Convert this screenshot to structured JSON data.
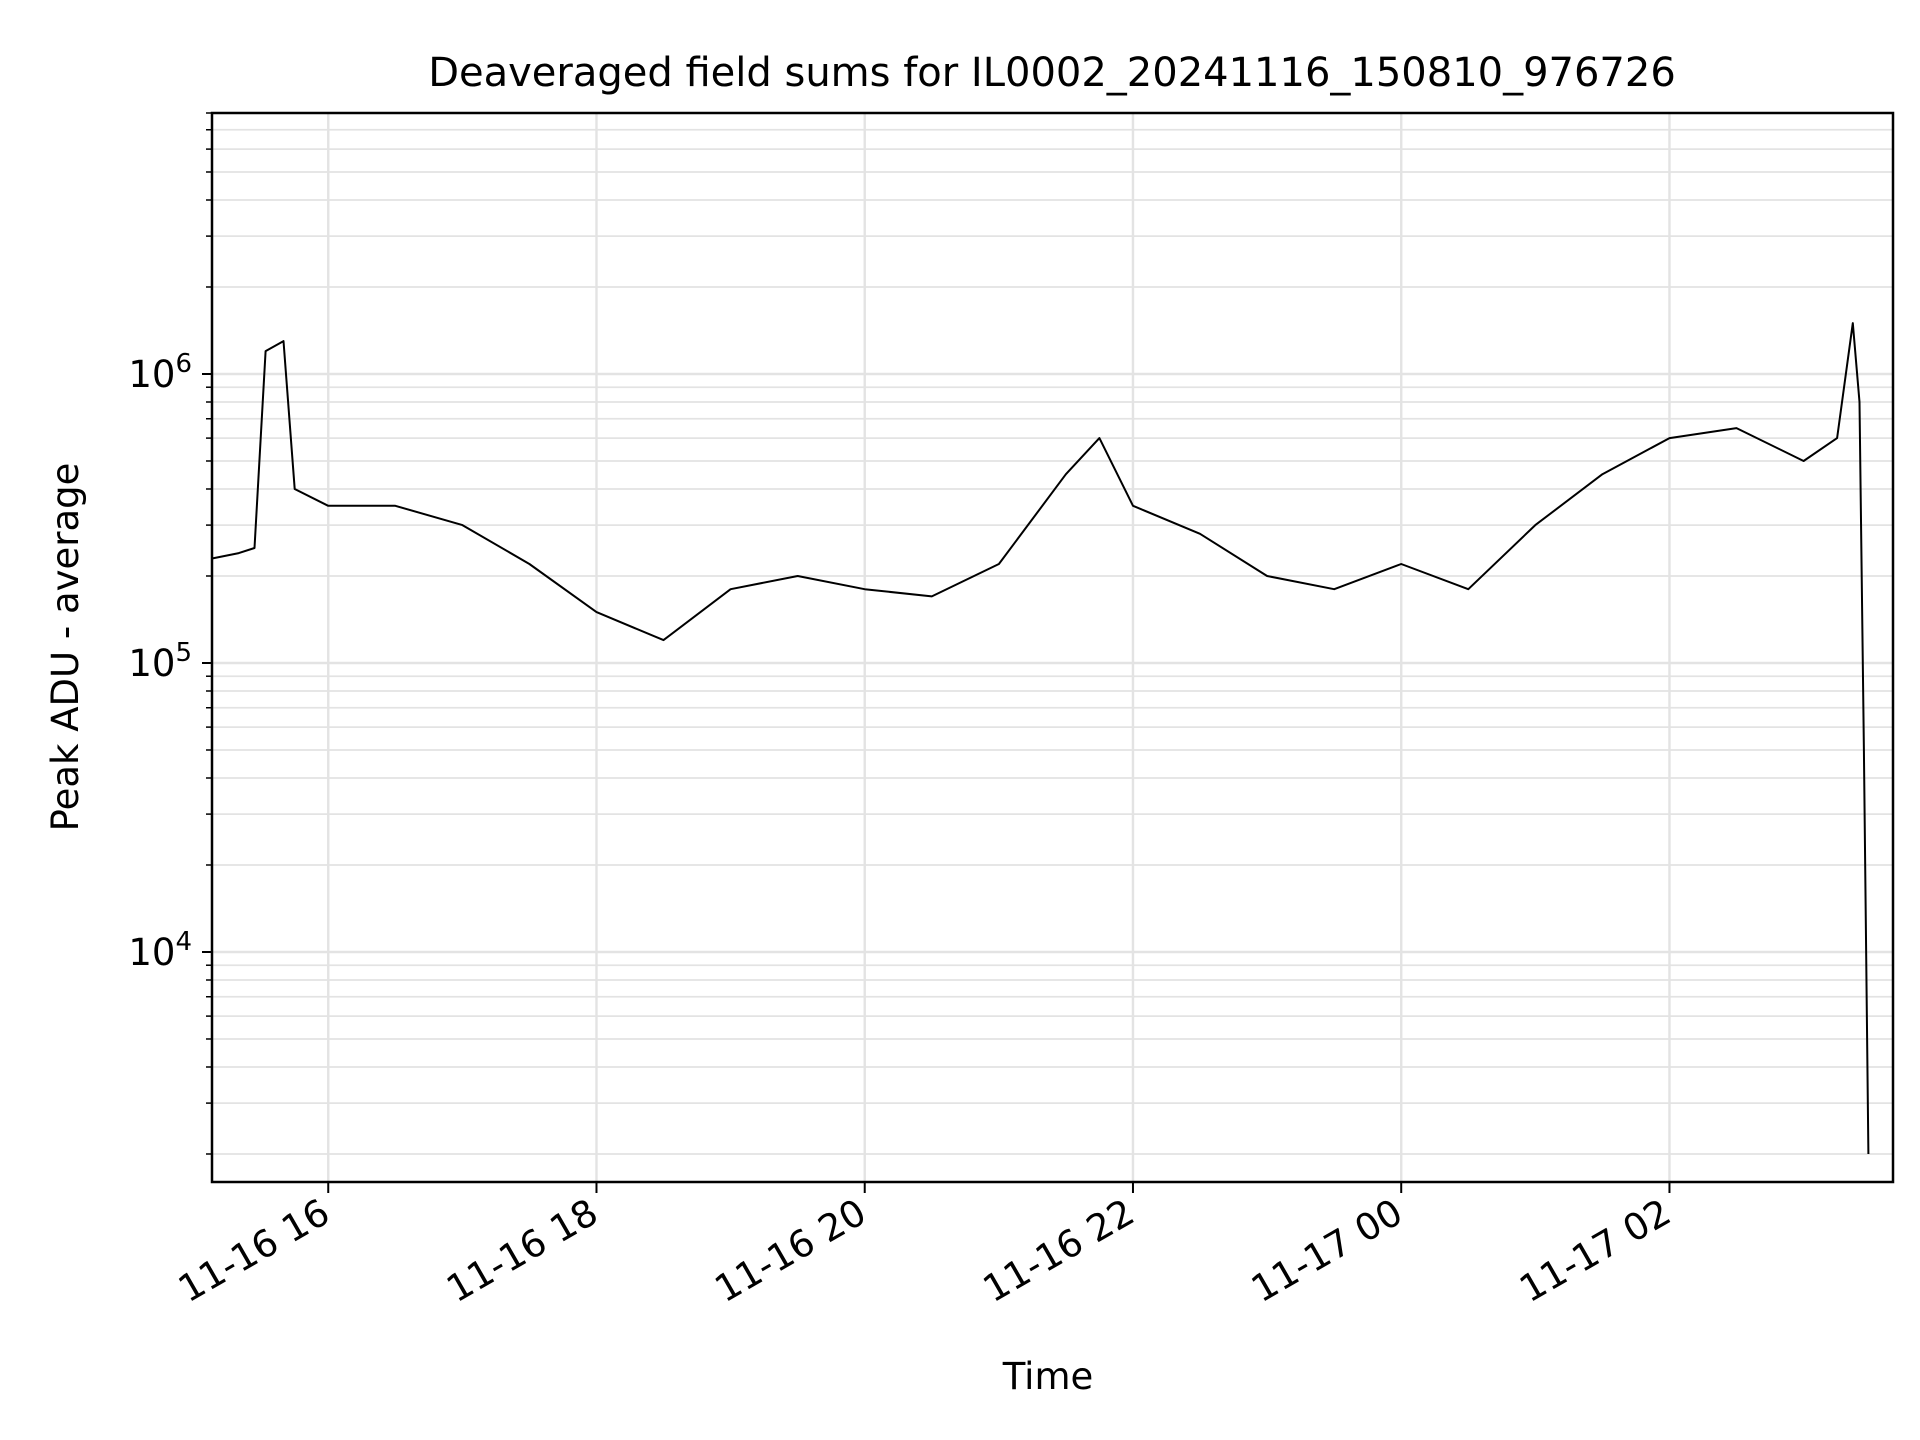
{
  "chart_data": {
    "type": "line",
    "title": "Deaveraged field sums for IL0002_20241116_150810_976726",
    "xlabel": "Time",
    "ylabel": "Peak ADU - average",
    "yscale": "log",
    "grid": true,
    "x_ticks": [
      {
        "label": "11-16 16",
        "t": "2024-11-16T16:00"
      },
      {
        "label": "11-16 18",
        "t": "2024-11-16T18:00"
      },
      {
        "label": "11-16 20",
        "t": "2024-11-16T20:00"
      },
      {
        "label": "11-16 22",
        "t": "2024-11-16T22:00"
      },
      {
        "label": "11-17 00",
        "t": "2024-11-17T00:00"
      },
      {
        "label": "11-17 02",
        "t": "2024-11-17T02:00"
      }
    ],
    "y_ticks": [
      {
        "base": "10",
        "exp": "4",
        "value": 10000
      },
      {
        "base": "10",
        "exp": "5",
        "value": 100000
      },
      {
        "base": "10",
        "exp": "6",
        "value": 1000000
      }
    ],
    "xlim": [
      "2024-11-16T15:08",
      "2024-11-17T03:40"
    ],
    "ylim": [
      1600,
      8000000
    ],
    "series": [
      {
        "color": "#000000",
        "x": [
          "2024-11-16T15:08",
          "2024-11-16T15:20",
          "2024-11-16T15:27",
          "2024-11-16T15:32",
          "2024-11-16T15:40",
          "2024-11-16T15:45",
          "2024-11-16T16:00",
          "2024-11-16T16:30",
          "2024-11-16T17:00",
          "2024-11-16T17:30",
          "2024-11-16T18:00",
          "2024-11-16T18:30",
          "2024-11-16T19:00",
          "2024-11-16T19:30",
          "2024-11-16T20:00",
          "2024-11-16T20:30",
          "2024-11-16T21:00",
          "2024-11-16T21:30",
          "2024-11-16T21:45",
          "2024-11-16T22:00",
          "2024-11-16T22:30",
          "2024-11-16T23:00",
          "2024-11-16T23:30",
          "2024-11-17T00:00",
          "2024-11-17T00:30",
          "2024-11-17T01:00",
          "2024-11-17T01:30",
          "2024-11-17T02:00",
          "2024-11-17T02:30",
          "2024-11-17T03:00",
          "2024-11-17T03:15",
          "2024-11-17T03:22",
          "2024-11-17T03:25",
          "2024-11-17T03:27",
          "2024-11-17T03:29"
        ],
        "y": [
          230000,
          240000,
          250000,
          1200000,
          1300000,
          400000,
          350000,
          350000,
          300000,
          220000,
          150000,
          120000,
          180000,
          200000,
          180000,
          170000,
          220000,
          450000,
          600000,
          350000,
          280000,
          200000,
          180000,
          220000,
          180000,
          300000,
          450000,
          600000,
          650000,
          500000,
          600000,
          1500000,
          800000,
          50000,
          2000
        ]
      }
    ]
  }
}
